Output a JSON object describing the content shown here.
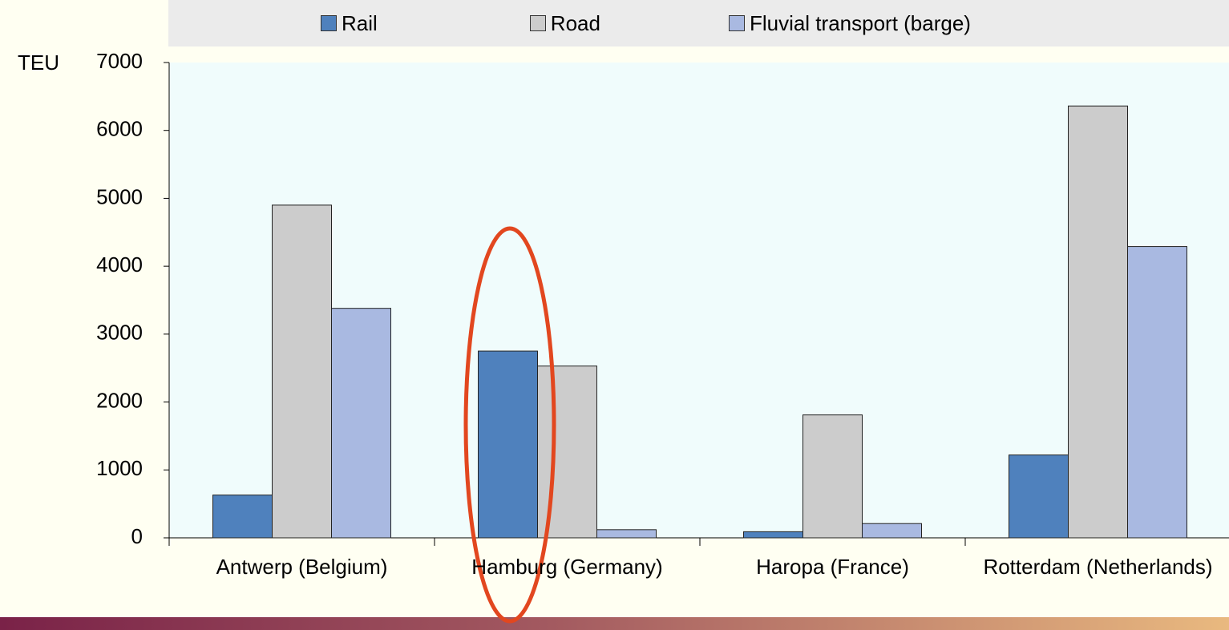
{
  "chart_data": {
    "type": "bar",
    "ylabel": "TEU",
    "categories": [
      "Antwerp (Belgium)",
      "Hamburg (Germany)",
      "Haropa (France)",
      "Rotterdam (Netherlands)"
    ],
    "series": [
      {
        "name": "Rail",
        "color": "#4f81bd",
        "values": [
          630,
          2750,
          90,
          1220
        ]
      },
      {
        "name": "Road",
        "color": "#cccccc",
        "values": [
          4900,
          2530,
          1810,
          6360
        ]
      },
      {
        "name": "Fluvial transport (barge)",
        "color": "#a9b9e1",
        "values": [
          3380,
          120,
          210,
          4290
        ]
      }
    ],
    "ylim": [
      0,
      7000
    ],
    "yticks": [
      0,
      1000,
      2000,
      3000,
      4000,
      5000,
      6000,
      7000
    ],
    "grid": false,
    "legend": "top"
  }
}
